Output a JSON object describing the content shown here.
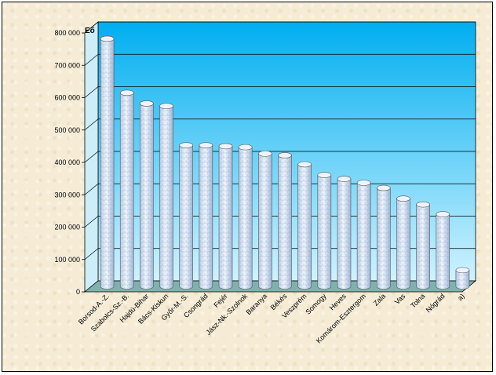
{
  "chart_data": {
    "type": "bar",
    "title": "",
    "xlabel": "",
    "ylabel": "Eő",
    "categories": [
      "Borsod-A.-Z.",
      "Szabolcs-Sz.-B.",
      "Hajdú-Bihar",
      "Bács-Kiskun",
      "Győr-M.-S.",
      "Csongrád",
      "Fejér",
      "Jász-Nk.-Szolnok",
      "Baranya",
      "Békés",
      "Veszprém",
      "Somogy",
      "Heves",
      "Komárom-Esztergom",
      "Zala",
      "Vas",
      "Tolna",
      "Nógrád",
      "a)"
    ],
    "values": [
      765000,
      598000,
      565000,
      557000,
      436000,
      436000,
      433000,
      430000,
      410000,
      405000,
      377000,
      344000,
      332000,
      320000,
      304000,
      271000,
      253000,
      223000,
      50000
    ],
    "ylim": [
      0,
      800000
    ],
    "yticks": [
      "0",
      "100 000",
      "200 000",
      "300 000",
      "400 000",
      "500 000",
      "600 000",
      "700 000",
      "800 000"
    ],
    "grid": true,
    "colors": {
      "wall_top": "#00aef0",
      "wall_bottom": "#cff3ff",
      "floor": "#7fb2ae",
      "bar_body": "#d9e6f5",
      "bar_top": "#eef4fb"
    }
  }
}
